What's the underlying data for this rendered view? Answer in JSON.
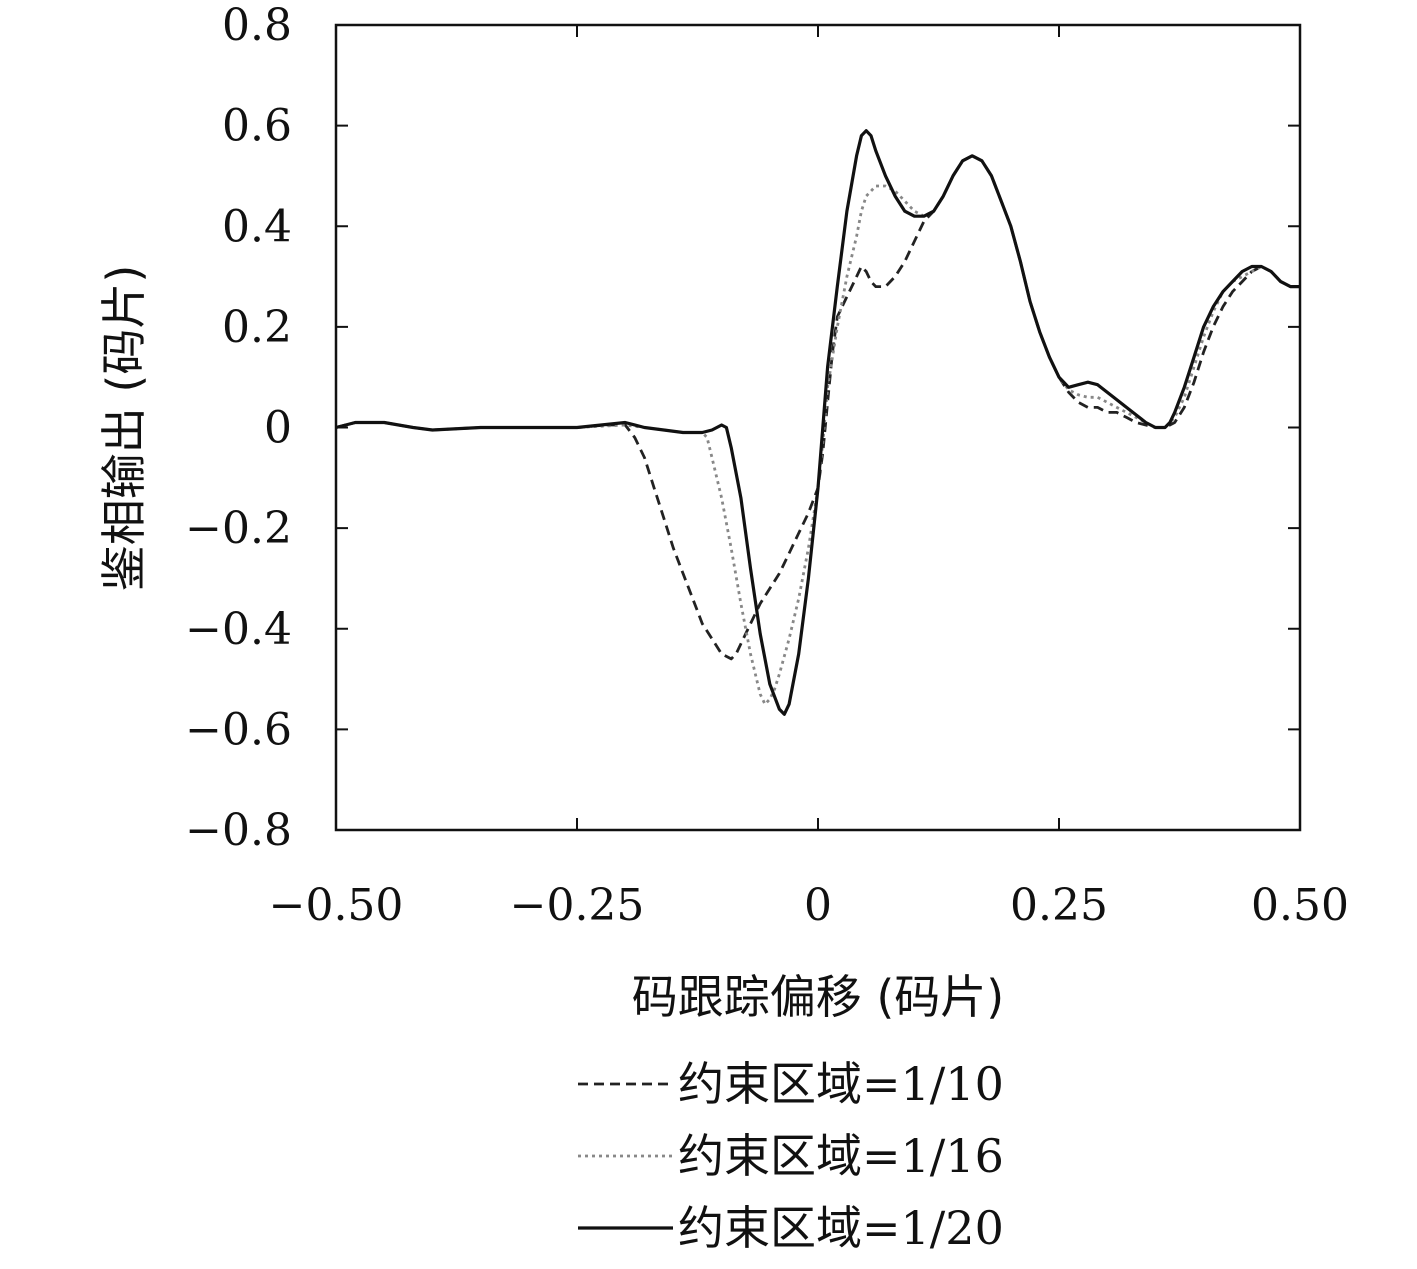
{
  "chart_data": {
    "type": "line",
    "xlabel": "码跟踪偏移 (码片)",
    "ylabel": "鉴相输出 (码片)",
    "xlim": [
      -0.5,
      0.5
    ],
    "ylim": [
      -0.8,
      0.8
    ],
    "x_ticks": [
      -0.5,
      -0.25,
      0,
      0.25,
      0.5
    ],
    "x_tick_labels": [
      "−0.50",
      "−0.25",
      "0",
      "0.25",
      "0.50"
    ],
    "y_ticks": [
      0.8,
      0.6,
      0.4,
      0.2,
      0,
      -0.2,
      -0.4,
      -0.6,
      -0.8
    ],
    "y_tick_labels": [
      "0.8",
      "0.6",
      "0.4",
      "0.2",
      "0",
      "−0.2",
      "−0.4",
      "−0.6",
      "−0.8"
    ],
    "grid": false,
    "legend_position": "bottom-center",
    "series": [
      {
        "name": "约束区域=1/10",
        "style": "dashed",
        "color": "#222222",
        "points": [
          [
            -0.5,
            0.0
          ],
          [
            -0.48,
            0.01
          ],
          [
            -0.45,
            0.01
          ],
          [
            -0.42,
            0.0
          ],
          [
            -0.4,
            -0.005
          ],
          [
            -0.35,
            0.0
          ],
          [
            -0.3,
            0.0
          ],
          [
            -0.25,
            0.0
          ],
          [
            -0.22,
            0.005
          ],
          [
            -0.2,
            0.005
          ],
          [
            -0.19,
            -0.02
          ],
          [
            -0.18,
            -0.06
          ],
          [
            -0.17,
            -0.12
          ],
          [
            -0.16,
            -0.18
          ],
          [
            -0.15,
            -0.24
          ],
          [
            -0.14,
            -0.29
          ],
          [
            -0.13,
            -0.34
          ],
          [
            -0.12,
            -0.39
          ],
          [
            -0.11,
            -0.42
          ],
          [
            -0.1,
            -0.45
          ],
          [
            -0.09,
            -0.46
          ],
          [
            -0.085,
            -0.45
          ],
          [
            -0.08,
            -0.43
          ],
          [
            -0.07,
            -0.39
          ],
          [
            -0.06,
            -0.35
          ],
          [
            -0.05,
            -0.32
          ],
          [
            -0.04,
            -0.29
          ],
          [
            -0.03,
            -0.25
          ],
          [
            -0.02,
            -0.21
          ],
          [
            -0.01,
            -0.17
          ],
          [
            0.0,
            -0.12
          ],
          [
            0.005,
            -0.05
          ],
          [
            0.01,
            0.05
          ],
          [
            0.015,
            0.15
          ],
          [
            0.02,
            0.22
          ],
          [
            0.03,
            0.26
          ],
          [
            0.04,
            0.3
          ],
          [
            0.045,
            0.32
          ],
          [
            0.05,
            0.31
          ],
          [
            0.055,
            0.29
          ],
          [
            0.06,
            0.28
          ],
          [
            0.065,
            0.28
          ],
          [
            0.07,
            0.28
          ],
          [
            0.08,
            0.3
          ],
          [
            0.09,
            0.33
          ],
          [
            0.1,
            0.37
          ],
          [
            0.11,
            0.41
          ],
          [
            0.12,
            0.43
          ],
          [
            0.13,
            0.46
          ],
          [
            0.14,
            0.5
          ],
          [
            0.15,
            0.53
          ],
          [
            0.16,
            0.54
          ],
          [
            0.17,
            0.53
          ],
          [
            0.18,
            0.5
          ],
          [
            0.19,
            0.45
          ],
          [
            0.2,
            0.4
          ],
          [
            0.21,
            0.33
          ],
          [
            0.22,
            0.25
          ],
          [
            0.23,
            0.19
          ],
          [
            0.24,
            0.14
          ],
          [
            0.25,
            0.1
          ],
          [
            0.26,
            0.07
          ],
          [
            0.27,
            0.05
          ],
          [
            0.28,
            0.04
          ],
          [
            0.29,
            0.04
          ],
          [
            0.3,
            0.03
          ],
          [
            0.31,
            0.03
          ],
          [
            0.32,
            0.02
          ],
          [
            0.33,
            0.01
          ],
          [
            0.34,
            0.005
          ],
          [
            0.35,
            0.0
          ],
          [
            0.36,
            0.0
          ],
          [
            0.37,
            0.01
          ],
          [
            0.38,
            0.04
          ],
          [
            0.39,
            0.09
          ],
          [
            0.4,
            0.15
          ],
          [
            0.41,
            0.2
          ],
          [
            0.42,
            0.24
          ],
          [
            0.43,
            0.27
          ],
          [
            0.44,
            0.29
          ],
          [
            0.45,
            0.31
          ],
          [
            0.46,
            0.32
          ],
          [
            0.47,
            0.31
          ],
          [
            0.48,
            0.29
          ],
          [
            0.49,
            0.28
          ],
          [
            0.5,
            0.28
          ]
        ]
      },
      {
        "name": "约束区域=1/16",
        "style": "dotted",
        "color": "#888888",
        "points": [
          [
            -0.5,
            0.0
          ],
          [
            -0.48,
            0.01
          ],
          [
            -0.45,
            0.01
          ],
          [
            -0.42,
            0.0
          ],
          [
            -0.4,
            -0.005
          ],
          [
            -0.35,
            0.0
          ],
          [
            -0.3,
            0.0
          ],
          [
            -0.25,
            0.0
          ],
          [
            -0.2,
            0.005
          ],
          [
            -0.18,
            0.0
          ],
          [
            -0.16,
            -0.005
          ],
          [
            -0.14,
            -0.01
          ],
          [
            -0.12,
            -0.01
          ],
          [
            -0.115,
            -0.02
          ],
          [
            -0.11,
            -0.06
          ],
          [
            -0.1,
            -0.14
          ],
          [
            -0.09,
            -0.24
          ],
          [
            -0.08,
            -0.35
          ],
          [
            -0.07,
            -0.45
          ],
          [
            -0.06,
            -0.53
          ],
          [
            -0.055,
            -0.55
          ],
          [
            -0.05,
            -0.54
          ],
          [
            -0.045,
            -0.52
          ],
          [
            -0.04,
            -0.49
          ],
          [
            -0.03,
            -0.42
          ],
          [
            -0.02,
            -0.34
          ],
          [
            -0.01,
            -0.24
          ],
          [
            0.0,
            -0.12
          ],
          [
            0.005,
            -0.03
          ],
          [
            0.01,
            0.08
          ],
          [
            0.02,
            0.2
          ],
          [
            0.03,
            0.3
          ],
          [
            0.04,
            0.38
          ],
          [
            0.045,
            0.43
          ],
          [
            0.05,
            0.46
          ],
          [
            0.06,
            0.48
          ],
          [
            0.07,
            0.48
          ],
          [
            0.08,
            0.47
          ],
          [
            0.09,
            0.45
          ],
          [
            0.1,
            0.43
          ],
          [
            0.11,
            0.42
          ],
          [
            0.12,
            0.43
          ],
          [
            0.13,
            0.46
          ],
          [
            0.14,
            0.5
          ],
          [
            0.15,
            0.53
          ],
          [
            0.16,
            0.54
          ],
          [
            0.17,
            0.53
          ],
          [
            0.18,
            0.5
          ],
          [
            0.19,
            0.45
          ],
          [
            0.2,
            0.4
          ],
          [
            0.21,
            0.33
          ],
          [
            0.22,
            0.25
          ],
          [
            0.23,
            0.19
          ],
          [
            0.24,
            0.14
          ],
          [
            0.25,
            0.1
          ],
          [
            0.26,
            0.075
          ],
          [
            0.27,
            0.065
          ],
          [
            0.28,
            0.06
          ],
          [
            0.29,
            0.06
          ],
          [
            0.3,
            0.05
          ],
          [
            0.31,
            0.04
          ],
          [
            0.32,
            0.03
          ],
          [
            0.33,
            0.02
          ],
          [
            0.34,
            0.01
          ],
          [
            0.35,
            0.0
          ],
          [
            0.36,
            0.0
          ],
          [
            0.37,
            0.02
          ],
          [
            0.38,
            0.06
          ],
          [
            0.39,
            0.12
          ],
          [
            0.4,
            0.18
          ],
          [
            0.41,
            0.23
          ],
          [
            0.42,
            0.27
          ],
          [
            0.43,
            0.29
          ],
          [
            0.44,
            0.3
          ],
          [
            0.45,
            0.31
          ],
          [
            0.46,
            0.32
          ],
          [
            0.47,
            0.31
          ],
          [
            0.48,
            0.29
          ],
          [
            0.49,
            0.28
          ],
          [
            0.5,
            0.28
          ]
        ]
      },
      {
        "name": "约束区域=1/20",
        "style": "solid",
        "color": "#111111",
        "points": [
          [
            -0.5,
            0.0
          ],
          [
            -0.48,
            0.01
          ],
          [
            -0.45,
            0.01
          ],
          [
            -0.42,
            0.0
          ],
          [
            -0.4,
            -0.005
          ],
          [
            -0.35,
            0.0
          ],
          [
            -0.3,
            0.0
          ],
          [
            -0.25,
            0.0
          ],
          [
            -0.2,
            0.01
          ],
          [
            -0.18,
            0.0
          ],
          [
            -0.16,
            -0.005
          ],
          [
            -0.14,
            -0.01
          ],
          [
            -0.12,
            -0.01
          ],
          [
            -0.11,
            -0.005
          ],
          [
            -0.1,
            0.005
          ],
          [
            -0.095,
            0.0
          ],
          [
            -0.09,
            -0.04
          ],
          [
            -0.08,
            -0.14
          ],
          [
            -0.07,
            -0.28
          ],
          [
            -0.06,
            -0.41
          ],
          [
            -0.05,
            -0.51
          ],
          [
            -0.04,
            -0.56
          ],
          [
            -0.035,
            -0.57
          ],
          [
            -0.03,
            -0.55
          ],
          [
            -0.02,
            -0.45
          ],
          [
            -0.01,
            -0.3
          ],
          [
            0.0,
            -0.12
          ],
          [
            0.005,
            0.0
          ],
          [
            0.01,
            0.12
          ],
          [
            0.02,
            0.28
          ],
          [
            0.03,
            0.43
          ],
          [
            0.04,
            0.54
          ],
          [
            0.045,
            0.58
          ],
          [
            0.05,
            0.59
          ],
          [
            0.055,
            0.58
          ],
          [
            0.06,
            0.55
          ],
          [
            0.07,
            0.5
          ],
          [
            0.08,
            0.46
          ],
          [
            0.09,
            0.43
          ],
          [
            0.1,
            0.42
          ],
          [
            0.11,
            0.42
          ],
          [
            0.12,
            0.43
          ],
          [
            0.13,
            0.46
          ],
          [
            0.14,
            0.5
          ],
          [
            0.15,
            0.53
          ],
          [
            0.16,
            0.54
          ],
          [
            0.17,
            0.53
          ],
          [
            0.18,
            0.5
          ],
          [
            0.19,
            0.45
          ],
          [
            0.2,
            0.4
          ],
          [
            0.21,
            0.33
          ],
          [
            0.22,
            0.25
          ],
          [
            0.23,
            0.19
          ],
          [
            0.24,
            0.14
          ],
          [
            0.25,
            0.1
          ],
          [
            0.26,
            0.08
          ],
          [
            0.27,
            0.085
          ],
          [
            0.28,
            0.09
          ],
          [
            0.29,
            0.085
          ],
          [
            0.3,
            0.07
          ],
          [
            0.31,
            0.055
          ],
          [
            0.32,
            0.04
          ],
          [
            0.33,
            0.025
          ],
          [
            0.34,
            0.01
          ],
          [
            0.35,
            0.0
          ],
          [
            0.36,
            0.0
          ],
          [
            0.365,
            0.01
          ],
          [
            0.37,
            0.03
          ],
          [
            0.38,
            0.08
          ],
          [
            0.39,
            0.14
          ],
          [
            0.4,
            0.2
          ],
          [
            0.41,
            0.24
          ],
          [
            0.42,
            0.27
          ],
          [
            0.43,
            0.29
          ],
          [
            0.44,
            0.31
          ],
          [
            0.45,
            0.32
          ],
          [
            0.46,
            0.32
          ],
          [
            0.47,
            0.31
          ],
          [
            0.48,
            0.29
          ],
          [
            0.49,
            0.28
          ],
          [
            0.5,
            0.28
          ]
        ]
      }
    ]
  }
}
